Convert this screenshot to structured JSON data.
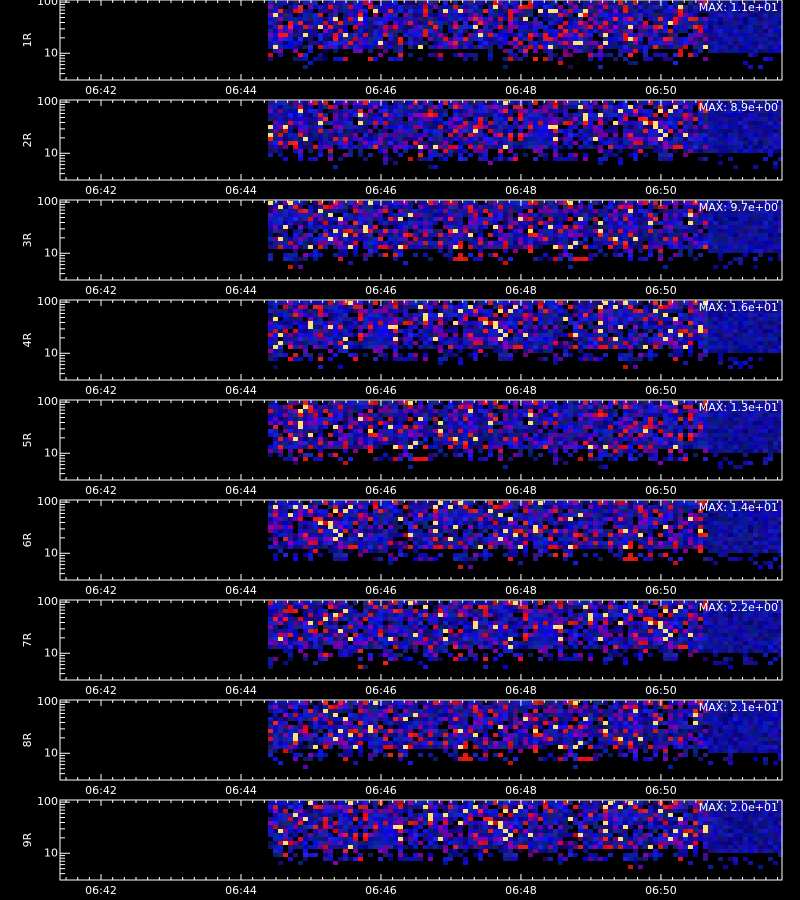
{
  "chart_data": [
    {
      "type": "heatmap",
      "ylabel": "1R",
      "annotation": "MAX: 1.1e+01",
      "log_y": true,
      "xlim": [
        41.414,
        51.73
      ],
      "xticks": [
        {
          "value": 42,
          "label": "06:42"
        },
        {
          "value": 44,
          "label": "06:44"
        },
        {
          "value": 46,
          "label": "06:46"
        },
        {
          "value": 48,
          "label": "06:48"
        },
        {
          "value": 50,
          "label": "06:50"
        }
      ],
      "ylim": [
        3,
        110
      ],
      "yticks": [
        10,
        100
      ]
    },
    {
      "type": "heatmap",
      "ylabel": "2R",
      "annotation": "MAX: 8.9e+00",
      "log_y": true,
      "xlim": [
        41.414,
        51.73
      ],
      "xticks": [
        {
          "value": 42,
          "label": "06:42"
        },
        {
          "value": 44,
          "label": "06:44"
        },
        {
          "value": 46,
          "label": "06:46"
        },
        {
          "value": 48,
          "label": "06:48"
        },
        {
          "value": 50,
          "label": "06:50"
        }
      ],
      "ylim": [
        3,
        110
      ],
      "yticks": [
        10,
        100
      ]
    },
    {
      "type": "heatmap",
      "ylabel": "3R",
      "annotation": "MAX: 9.7e+00",
      "log_y": true,
      "xlim": [
        41.414,
        51.73
      ],
      "xticks": [
        {
          "value": 42,
          "label": "06:42"
        },
        {
          "value": 44,
          "label": "06:44"
        },
        {
          "value": 46,
          "label": "06:46"
        },
        {
          "value": 48,
          "label": "06:48"
        },
        {
          "value": 50,
          "label": "06:50"
        }
      ],
      "ylim": [
        3,
        110
      ],
      "yticks": [
        10,
        100
      ]
    },
    {
      "type": "heatmap",
      "ylabel": "4R",
      "annotation": "MAX: 1.6e+01",
      "log_y": true,
      "xlim": [
        41.414,
        51.73
      ],
      "xticks": [
        {
          "value": 42,
          "label": "06:42"
        },
        {
          "value": 44,
          "label": "06:44"
        },
        {
          "value": 46,
          "label": "06:46"
        },
        {
          "value": 48,
          "label": "06:48"
        },
        {
          "value": 50,
          "label": "06:50"
        }
      ],
      "ylim": [
        3,
        110
      ],
      "yticks": [
        10,
        100
      ]
    },
    {
      "type": "heatmap",
      "ylabel": "5R",
      "annotation": "MAX: 1.3e+01",
      "log_y": true,
      "xlim": [
        41.414,
        51.73
      ],
      "xticks": [
        {
          "value": 42,
          "label": "06:42"
        },
        {
          "value": 44,
          "label": "06:44"
        },
        {
          "value": 46,
          "label": "06:46"
        },
        {
          "value": 48,
          "label": "06:48"
        },
        {
          "value": 50,
          "label": "06:50"
        }
      ],
      "ylim": [
        3,
        110
      ],
      "yticks": [
        10,
        100
      ]
    },
    {
      "type": "heatmap",
      "ylabel": "6R",
      "annotation": "MAX: 1.4e+01",
      "log_y": true,
      "xlim": [
        41.414,
        51.73
      ],
      "xticks": [
        {
          "value": 42,
          "label": "06:42"
        },
        {
          "value": 44,
          "label": "06:44"
        },
        {
          "value": 46,
          "label": "06:46"
        },
        {
          "value": 48,
          "label": "06:48"
        },
        {
          "value": 50,
          "label": "06:50"
        }
      ],
      "ylim": [
        3,
        110
      ],
      "yticks": [
        10,
        100
      ]
    },
    {
      "type": "heatmap",
      "ylabel": "7R",
      "annotation": "MAX: 2.2e+00",
      "log_y": true,
      "xlim": [
        41.414,
        51.73
      ],
      "xticks": [
        {
          "value": 42,
          "label": "06:42"
        },
        {
          "value": 44,
          "label": "06:44"
        },
        {
          "value": 46,
          "label": "06:46"
        },
        {
          "value": 48,
          "label": "06:48"
        },
        {
          "value": 50,
          "label": "06:50"
        }
      ],
      "ylim": [
        3,
        110
      ],
      "yticks": [
        10,
        100
      ]
    },
    {
      "type": "heatmap",
      "ylabel": "8R",
      "annotation": "MAX: 2.1e+01",
      "log_y": true,
      "xlim": [
        41.414,
        51.73
      ],
      "xticks": [
        {
          "value": 42,
          "label": "06:42"
        },
        {
          "value": 44,
          "label": "06:44"
        },
        {
          "value": 46,
          "label": "06:46"
        },
        {
          "value": 48,
          "label": "06:48"
        },
        {
          "value": 50,
          "label": "06:50"
        }
      ],
      "ylim": [
        3,
        110
      ],
      "yticks": [
        10,
        100
      ]
    },
    {
      "type": "heatmap",
      "ylabel": "9R",
      "annotation": "MAX: 2.0e+01",
      "log_y": true,
      "xlim": [
        41.414,
        51.73
      ],
      "xticks": [
        {
          "value": 42,
          "label": "06:42"
        },
        {
          "value": 44,
          "label": "06:44"
        },
        {
          "value": 46,
          "label": "06:46"
        },
        {
          "value": 48,
          "label": "06:48"
        },
        {
          "value": 50,
          "label": "06:50"
        }
      ],
      "ylim": [
        3,
        110
      ],
      "yticks": [
        10,
        100
      ]
    }
  ]
}
